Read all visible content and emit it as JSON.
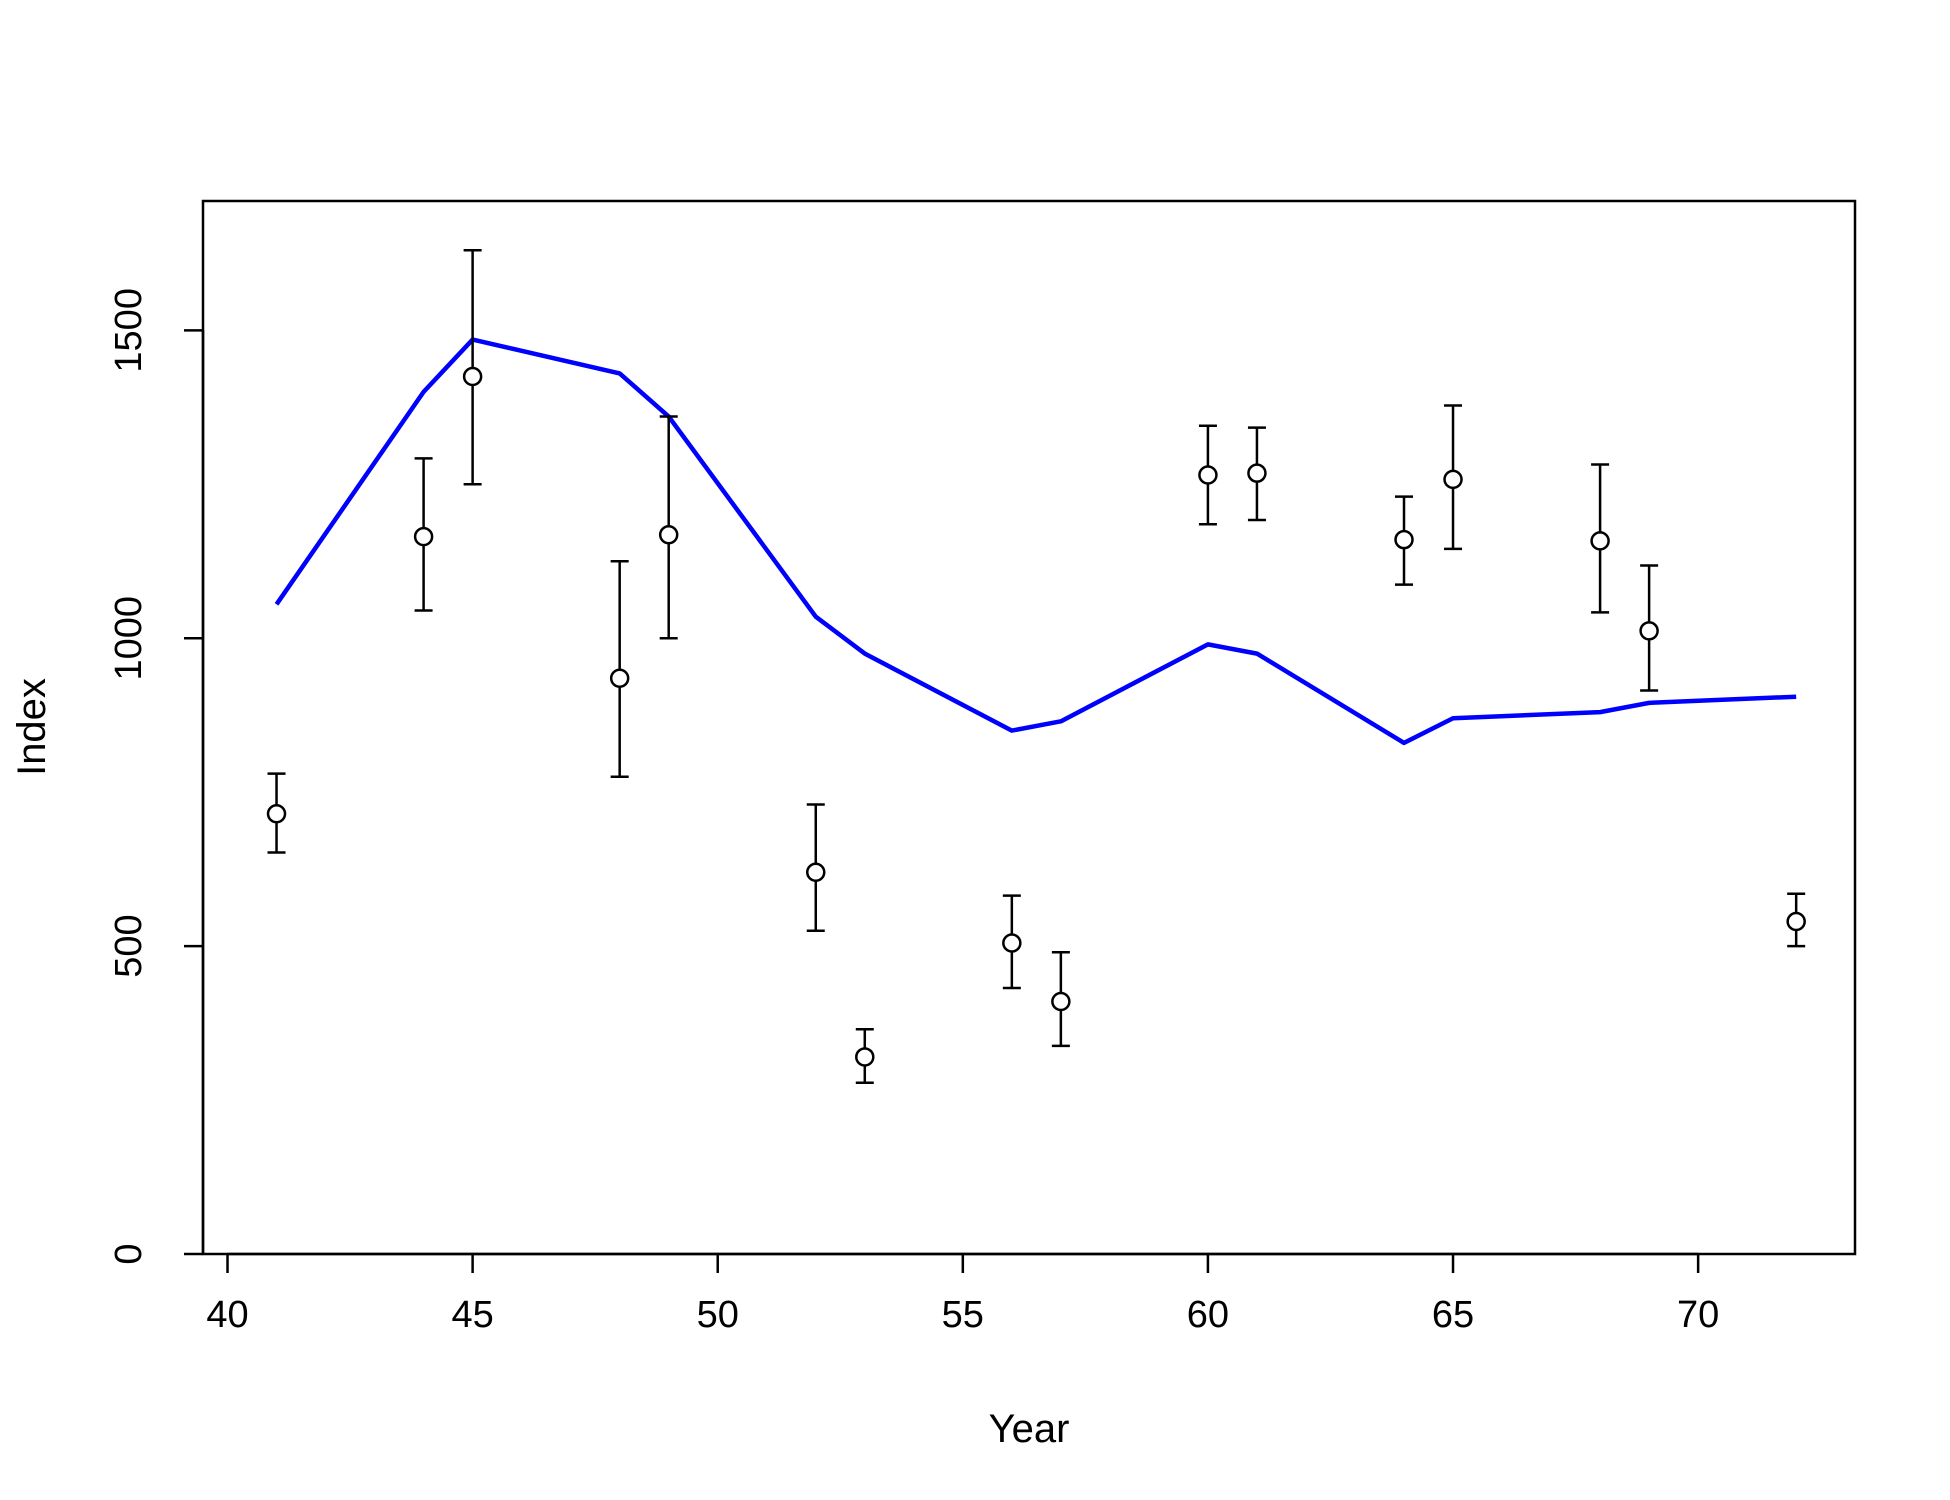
{
  "chart_data": {
    "type": "line",
    "title": "",
    "xlabel": "Year",
    "ylabel": "Index",
    "xlim": [
      39.5,
      73.2
    ],
    "ylim": [
      0,
      1710
    ],
    "x_ticks": [
      40,
      45,
      50,
      55,
      60,
      65,
      70
    ],
    "y_ticks": [
      0,
      500,
      1000,
      1500
    ],
    "grid": false,
    "legend": "none",
    "colors": {
      "fit_line": "#0000ff",
      "observed": "#000000",
      "background": "#ffffff"
    },
    "series": [
      {
        "type": "line",
        "x": [
          41,
          44,
          45,
          48,
          49,
          52,
          53,
          56,
          57,
          60,
          61,
          64,
          65,
          68,
          69,
          72
        ],
        "values": [
          1055,
          1400,
          1485,
          1430,
          1360,
          1035,
          975,
          850,
          865,
          990,
          975,
          830,
          870,
          880,
          895,
          905
        ]
      },
      {
        "type": "scatter_errorbar",
        "x": [
          41,
          44,
          45,
          48,
          49,
          52,
          53,
          56,
          57,
          60,
          61,
          64,
          65,
          68,
          69,
          72
        ],
        "values": [
          715,
          1165,
          1425,
          935,
          1168,
          620,
          320,
          505,
          410,
          1265,
          1268,
          1160,
          1258,
          1158,
          1012,
          540
        ],
        "lower": [
          652,
          1045,
          1250,
          775,
          1000,
          525,
          278,
          432,
          338,
          1185,
          1192,
          1087,
          1145,
          1042,
          915,
          500
        ],
        "upper": [
          780,
          1292,
          1630,
          1125,
          1360,
          730,
          365,
          582,
          490,
          1345,
          1342,
          1230,
          1378,
          1282,
          1118,
          585
        ]
      }
    ]
  }
}
